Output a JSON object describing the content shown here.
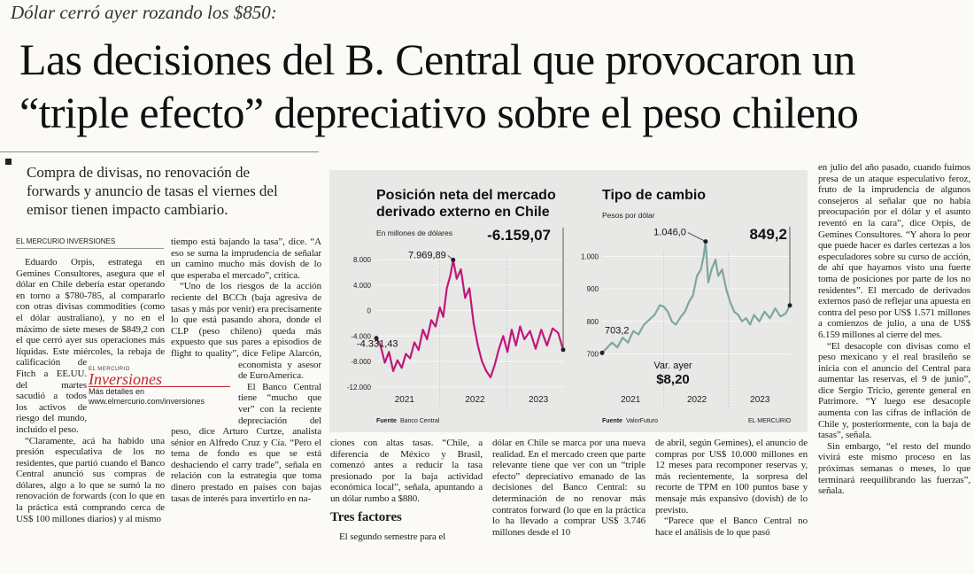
{
  "article": {
    "kicker": "Dólar cerró ayer rozando los $850:",
    "headline": [
      "Las decisiones del B. Central que provocaron un",
      "“triple efecto” depreciativo sobre el peso chileno"
    ],
    "deck": "Compra de divisas, no renovación de forwards y anuncio de tasas el viernes del emisor tienen impacto cambiario.",
    "byline": "EL MERCURIO INVERSIONES",
    "subheading": "Tres factores",
    "columns": [
      [
        "Eduardo Orpis, estratega en Gemines Consultores, asegura que el dólar en Chile debería estar operando en torno a $780-785, al compararlo con otras divisas commodities (como el dólar australiano), y no en el máximo de siete meses de $849,2 con el que cerró ayer sus operaciones más líquidas. Este miércoles, la rebaja de calificación de Fitch a EE.UU. del martes sacudió a todos los activos de riesgo del mundo, incluido el peso.",
        "“Claramente, acá ha habido una presión especulativa de los no residentes, que partió cuando el Banco Central anunció sus compras de dólares, algo a lo que se sumó la no renovación de forwards (con lo que en la práctica está comprando cerca de US$ 100 millones diarios) y al mismo"
      ],
      [
        "tiempo está bajando la tasa”, dice. “A eso se suma la imprudencia de señalar un camino mucho más dovish de lo que esperaba el mercado”, critica.",
        "“Uno de los riesgos de la acción reciente del BCCh (baja agresiva de tasas y más por venir) era precisamente lo que está pasando ahora, donde el CLP (peso chileno) queda más expuesto que sus pares a episodios de flight to quality”, dice Felipe Alarcón, economista y asesor de EuroAmerica.",
        "El Banco Central tiene “mucho que ver” con la reciente depreciación del peso, dice Arturo Curtze, analista sénior en Alfredo Cruz y Cía. “Pero el tema de fondo es que se está deshaciendo el carry trade”, señala en relación con la estrategia que toma dinero prestado en países con bajas tasas de interés para invertirlo en na-"
      ],
      [
        "ciones con altas tasas. “Chile, a diferencia de México y Brasil, comenzó antes a reducir la tasa presionado por la baja actividad económica local”, señala, apuntando a un dólar rumbo a $880.",
        "El segundo semestre para el"
      ],
      [
        "dólar en Chile se marca por una nueva realidad. En el mercado creen que parte relevante tiene que ver con un “triple efecto” depreciativo emanado de las decisiones del Banco Central: su determinación de no renovar más contratos forward (lo que en la práctica lo ha llevado a comprar US$ 3.746 millones desde el 10"
      ],
      [
        "de abril, según Gemines), el anuncio de compras por US$ 10.000 millones en 12 meses para recomponer reservas y, más recientemente, la sorpresa del recorte de TPM en 100 puntos base y mensaje más expansivo (dovish) de lo previsto.",
        "“Parece que el Banco Central no hace el análisis de lo que pasó"
      ],
      [
        "en julio del año pasado, cuando fuimos presa de un ataque especulativo feroz, fruto de la imprudencia de algunos consejeros al señalar que no había preocupación por el dólar y el asunto reventó en la cara”, dice Orpis, de Gemines Consultores. “Y ahora lo peor que puede hacer es darles certezas a los especuladores sobre su curso de acción, de ahí que hayamos visto una fuerte toma de posiciones por parte de los no residentes”. El mercado de derivados externos pasó de reflejar una apuesta en contra del peso por US$ 1.571 millones a comienzos de julio, a una de US$ 6.159 millones al cierre del mes.",
        "“El desacople con divisas como el peso mexicano y el real brasileño se inicia con el anuncio del Central para aumentar las reservas, el 9 de junio”, dice Sergio Tricio, gerente general en Patrimore. “Y luego ese desacople aumenta con las cifras de inflación de Chile y, posteriormente, con la baja de tasas”, señala.",
        "Sin embargo, “el resto del mundo vivirá este mismo proceso en las próximas semanas o meses, lo que terminará reequilibrando las fuerzas”, señala."
      ]
    ]
  },
  "ad": {
    "brand": "EL MERCURIO",
    "title": "Inversiones",
    "line": "Más detalles en",
    "url": "www.elmercurio.com/inversiones"
  },
  "chart_data": [
    {
      "type": "line",
      "title": [
        "Posición neta del mercado",
        "derivado externo en Chile"
      ],
      "subtitle": "En millones de dólares",
      "color": "#c0187c",
      "x": [
        2021.1,
        2021.16,
        2021.22,
        2021.28,
        2021.34,
        2021.4,
        2021.46,
        2021.52,
        2021.58,
        2021.64,
        2021.7,
        2021.76,
        2021.82,
        2021.88,
        2021.94,
        2022.0,
        2022.05,
        2022.1,
        2022.15,
        2022.19,
        2022.24,
        2022.3,
        2022.36,
        2022.42,
        2022.48,
        2022.54,
        2022.6,
        2022.66,
        2022.72,
        2022.78,
        2022.84,
        2022.9,
        2022.96,
        2023.02,
        2023.08,
        2023.14,
        2023.2,
        2023.28,
        2023.36,
        2023.44,
        2023.52,
        2023.6,
        2023.68,
        2023.75
      ],
      "values": [
        -4331.43,
        -5500,
        -8200,
        -6500,
        -9500,
        -7800,
        -9000,
        -6800,
        -7500,
        -5000,
        -6200,
        -3000,
        -4500,
        -1500,
        -2500,
        500,
        -1000,
        3500,
        5500,
        7969.89,
        5000,
        6500,
        2000,
        3500,
        -2000,
        -5500,
        -8000,
        -9500,
        -10500,
        -8500,
        -6000,
        -4000,
        -6500,
        -3000,
        -5500,
        -2500,
        -4500,
        -3200,
        -6000,
        -3000,
        -5500,
        -2800,
        -3500,
        -6159.07
      ],
      "xlim": [
        2021.1,
        2023.75
      ],
      "ylim": [
        -13000,
        9000
      ],
      "xticks": [
        {
          "value": 2021.5,
          "label": "2021"
        },
        {
          "value": 2022.5,
          "label": "2022"
        },
        {
          "value": 2023.4,
          "label": "2023"
        }
      ],
      "yticks": [
        {
          "value": 8000,
          "label": "8.000"
        },
        {
          "value": 4000,
          "label": "4.000"
        },
        0,
        {
          "value": -4000,
          "label": "-4.000"
        },
        {
          "value": -8000,
          "label": "-8.000"
        },
        {
          "value": -12000,
          "label": "-12.000"
        }
      ],
      "grid": true,
      "highlights": [
        {
          "x": 2022.19,
          "value": 7969.89,
          "label": "7.969,89"
        },
        {
          "x": 2021.1,
          "value": -4331.43,
          "label": "-4.331,43"
        },
        {
          "x": 2023.75,
          "value": -6159.07,
          "label": "-6.159,07"
        }
      ],
      "source": {
        "label": "Fuente",
        "name": "Banco Central"
      }
    },
    {
      "type": "line",
      "title": [
        "Tipo de cambio"
      ],
      "subtitle": "Pesos por dólar",
      "color": "#7ea6a2",
      "x": [
        2021.07,
        2021.15,
        2021.22,
        2021.3,
        2021.38,
        2021.46,
        2021.54,
        2021.62,
        2021.7,
        2021.78,
        2021.86,
        2021.94,
        2022.0,
        2022.06,
        2022.12,
        2022.18,
        2022.26,
        2022.32,
        2022.38,
        2022.44,
        2022.5,
        2022.56,
        2022.6,
        2022.63,
        2022.67,
        2022.72,
        2022.78,
        2022.82,
        2022.88,
        2022.94,
        2023.0,
        2023.06,
        2023.12,
        2023.18,
        2023.24,
        2023.3,
        2023.36,
        2023.44,
        2023.52,
        2023.6,
        2023.68,
        2023.76,
        2023.84,
        2023.9
      ],
      "values": [
        703.2,
        720,
        735,
        720,
        750,
        735,
        770,
        760,
        790,
        805,
        820,
        850,
        845,
        830,
        800,
        790,
        815,
        830,
        860,
        880,
        940,
        960,
        1000,
        1046.0,
        920,
        960,
        990,
        940,
        960,
        900,
        860,
        830,
        820,
        800,
        810,
        790,
        820,
        800,
        830,
        810,
        840,
        815,
        825,
        849.2
      ],
      "xlim": [
        2021.07,
        2023.9
      ],
      "ylim": [
        685,
        1015
      ],
      "xticks": [
        {
          "value": 2021.5,
          "label": "2021"
        },
        {
          "value": 2022.5,
          "label": "2022"
        },
        {
          "value": 2023.45,
          "label": "2023"
        }
      ],
      "yticks": [
        {
          "value": 1000,
          "label": "1.000"
        },
        900,
        800,
        700
      ],
      "grid": true,
      "highlights": [
        {
          "x": 2022.63,
          "value": 1046.0,
          "label": "1.046,0"
        },
        {
          "x": 2021.07,
          "value": 703.2,
          "label": "703,2"
        },
        {
          "x": 2023.9,
          "value": 849.2,
          "label": "849,2"
        }
      ],
      "change": {
        "label": "Var. ayer",
        "value": "$8,20"
      },
      "source": {
        "label": "Fuente",
        "name": "ValorFuturo"
      },
      "credit": "EL MERCURIO"
    }
  ]
}
